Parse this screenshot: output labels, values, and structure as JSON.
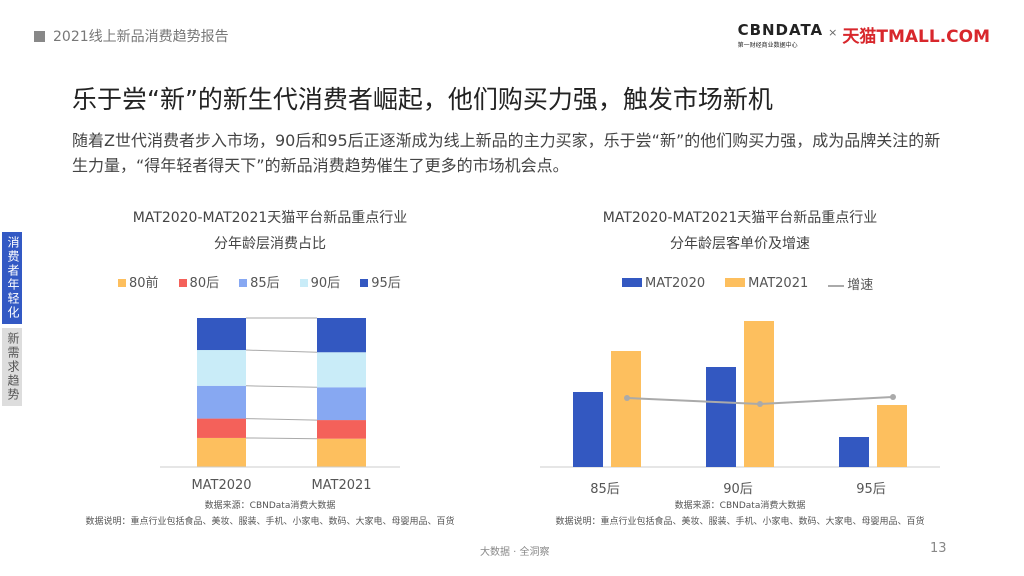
{
  "header": {
    "report": "2021线上新品消费趋势报告",
    "logo_cbn": "CBNDATA",
    "logo_cbn_sub": "第一财经商业数据中心",
    "logo_x": "×",
    "logo_tmall": "天猫TMALL.COM"
  },
  "title": "乐于尝“新”的新生代消费者崛起，他们购买力强，触发市场新机",
  "description": "随着Z世代消费者步入市场，90后和95后正逐渐成为线上新品的主力买家，乐于尝“新”的他们购买力强，成为品牌关注的新生力量，“得年轻者得天下”的新品消费趋势催生了更多的市场机会点。",
  "side_tabs": [
    {
      "label": "消费者年轻化",
      "active": true
    },
    {
      "label": "新需求趋势",
      "active": false
    }
  ],
  "chart_data": [
    {
      "type": "bar",
      "stacked": true,
      "percent": true,
      "title": "MAT2020-MAT2021天猫平台新品重点行业",
      "subtitle": "分年龄层消费占比",
      "categories": [
        "MAT2020",
        "MAT2021"
      ],
      "legend_position": "top",
      "grid": false,
      "series": [
        {
          "name": "80前",
          "color": "#fdbf5e",
          "values": [
            19.5,
            19
          ]
        },
        {
          "name": "80后",
          "color": "#f4615a",
          "values": [
            13,
            12.5
          ]
        },
        {
          "name": "85后",
          "color": "#87a8f2",
          "values": [
            22,
            22
          ]
        },
        {
          "name": "90后",
          "color": "#c9ecf8",
          "values": [
            24,
            23.5
          ]
        },
        {
          "name": "95后",
          "color": "#3358c1",
          "values": [
            21.5,
            23
          ]
        }
      ],
      "source": "数据来源：CBNData消费大数据",
      "note": "数据说明：重点行业包括食品、美妆、服装、手机、小家电、数码、大家电、母婴用品、百货"
    },
    {
      "type": "bar",
      "title": "MAT2020-MAT2021天猫平台新品重点行业",
      "subtitle": "分年龄层客单价及增速",
      "categories": [
        "85后",
        "90后",
        "95后"
      ],
      "legend_position": "top",
      "grid": false,
      "series": [
        {
          "name": "MAT2020",
          "color": "#3358c1",
          "values": [
            75,
            100,
            30
          ]
        },
        {
          "name": "MAT2021",
          "color": "#fdbf5e",
          "values": [
            116,
            146,
            62
          ]
        },
        {
          "name": "增速",
          "type": "line",
          "color": "#aaaaaa",
          "values": [
            0.69,
            0.63,
            0.7
          ]
        }
      ],
      "source": "数据来源：CBNData消费大数据",
      "note": "数据说明：重点行业包括食品、美妆、服装、手机、小家电、数码、大家电、母婴用品、百货"
    }
  ],
  "footer": "大数据 · 全洞察",
  "page": "13"
}
